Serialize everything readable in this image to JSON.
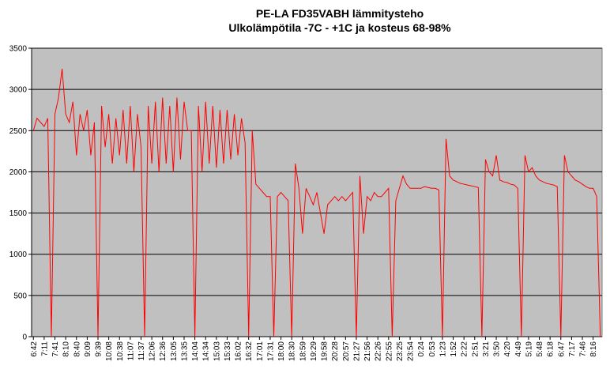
{
  "chart_data": {
    "type": "line",
    "title": "PE-LA FD35VABH lämmitysteho",
    "subtitle": "Ulkolämpötila  -7C - +1C ja kosteus 68-98%",
    "categories": [
      "6:42",
      null,
      null,
      "7:11",
      null,
      null,
      "7:41",
      null,
      null,
      "8:10",
      null,
      null,
      "8:40",
      null,
      null,
      "9:09",
      null,
      null,
      "9:39",
      null,
      null,
      "10:08",
      null,
      null,
      "10:38",
      null,
      null,
      "11:07",
      null,
      null,
      "11:37",
      null,
      null,
      "12:06",
      null,
      null,
      "12:36",
      null,
      null,
      "13:05",
      null,
      null,
      "13:35",
      null,
      null,
      "14:04",
      null,
      null,
      "14:34",
      null,
      null,
      "15:03",
      null,
      null,
      "15:33",
      null,
      null,
      "16:02",
      null,
      null,
      "16:32",
      null,
      null,
      "17:01",
      null,
      null,
      "17:31",
      null,
      null,
      "18:00",
      null,
      null,
      "18:30",
      null,
      null,
      "18:59",
      null,
      null,
      "19:29",
      null,
      null,
      "19:58",
      null,
      null,
      "20:28",
      null,
      null,
      "20:57",
      null,
      null,
      "21:27",
      null,
      null,
      "21:56",
      null,
      null,
      "22:26",
      null,
      null,
      "22:55",
      null,
      null,
      "23:25",
      null,
      null,
      "23:54",
      null,
      null,
      "0:24",
      null,
      null,
      "0:53",
      null,
      null,
      "1:23",
      null,
      null,
      "1:52",
      null,
      null,
      "2:22",
      null,
      null,
      "2:51",
      null,
      null,
      "3:21",
      null,
      null,
      "3:50",
      null,
      null,
      "4:20",
      null,
      null,
      "4:49",
      null,
      null,
      "5:19",
      null,
      null,
      "5:48",
      null,
      null,
      "6:18",
      null,
      null,
      "6:47",
      null,
      null,
      "7:17",
      null,
      null,
      "7:46",
      null,
      null,
      "8:16",
      null,
      null
    ],
    "series": [
      {
        "name": "lämmitysteho",
        "color": "#ff0000",
        "values": [
          2500,
          2650,
          2600,
          2550,
          2650,
          0,
          2700,
          2900,
          3250,
          2700,
          2600,
          2850,
          2200,
          2700,
          2500,
          2750,
          2200,
          2600,
          0,
          2800,
          2300,
          2700,
          2100,
          2650,
          2200,
          2750,
          2100,
          2800,
          2000,
          2700,
          2300,
          0,
          2800,
          2100,
          2850,
          2000,
          2900,
          2100,
          2800,
          2000,
          2900,
          2150,
          2850,
          2500,
          2500,
          0,
          2800,
          2000,
          2850,
          2100,
          2800,
          2050,
          2750,
          2100,
          2750,
          2150,
          2700,
          2200,
          2650,
          2350,
          0,
          2500,
          1850,
          1800,
          1750,
          1700,
          1700,
          0,
          1700,
          1750,
          1700,
          1650,
          0,
          2100,
          1800,
          1250,
          1800,
          1700,
          1600,
          1750,
          1500,
          1250,
          1600,
          1650,
          1700,
          1650,
          1700,
          1650,
          1700,
          1750,
          0,
          1950,
          1250,
          1700,
          1650,
          1750,
          1700,
          1700,
          1750,
          1800,
          0,
          1650,
          1800,
          1950,
          1850,
          1800,
          1800,
          1800,
          1800,
          1820,
          1810,
          1800,
          1800,
          1780,
          0,
          2400,
          1950,
          1900,
          1880,
          1860,
          1850,
          1840,
          1830,
          1820,
          1810,
          0,
          2150,
          2000,
          1950,
          2200,
          1900,
          1880,
          1870,
          1850,
          1840,
          1800,
          0,
          2200,
          2000,
          2050,
          1950,
          1900,
          1880,
          1860,
          1850,
          1840,
          1820,
          0,
          2200,
          2000,
          1950,
          1900,
          1880,
          1850,
          1820,
          1800,
          1800,
          1700,
          0
        ]
      }
    ],
    "ylim": [
      0,
      3500
    ],
    "yticks": [
      0,
      500,
      1000,
      1500,
      2000,
      2500,
      3000,
      3500
    ],
    "grid": true
  }
}
